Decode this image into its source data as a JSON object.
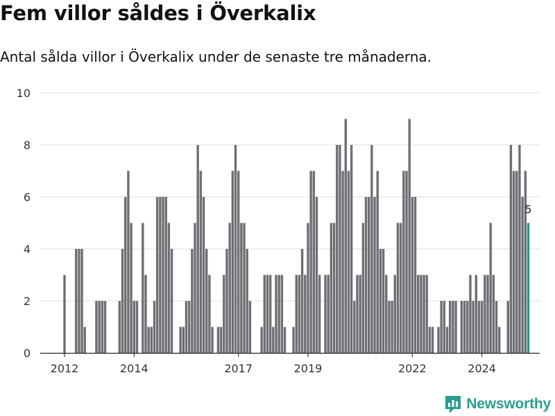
{
  "header": {
    "title": "Fem villor såldes i Överkalix",
    "subtitle": "Antal sålda villor i Överkalix under de senaste tre månaderna."
  },
  "brand": {
    "name": "Newsworthy",
    "color": "#2a9d8f"
  },
  "colors": {
    "bar": "#6f6e74",
    "highlight": "#1a9a91",
    "grid": "#dcdcdc",
    "axis": "#333333"
  },
  "chart_data": {
    "type": "bar",
    "title": "Fem villor såldes i Överkalix",
    "subtitle": "Antal sålda villor i Överkalix under de senaste tre månaderna.",
    "xlabel": "",
    "ylabel": "",
    "ylim": [
      0,
      10
    ],
    "y_ticks": [
      0,
      2,
      4,
      6,
      8,
      10
    ],
    "x_tick_labels": [
      "2012",
      "2014",
      "2017",
      "2019",
      "2022",
      "2024"
    ],
    "x_tick_months": [
      0,
      24,
      60,
      84,
      120,
      144
    ],
    "grid": true,
    "legend": "none",
    "series": [
      {
        "values": [
          3,
          0,
          0,
          0,
          4,
          4,
          4,
          1,
          0,
          0,
          0,
          2,
          2,
          2,
          2,
          0,
          0,
          0,
          0,
          2,
          4,
          6,
          7,
          5,
          2,
          2,
          0,
          5,
          3,
          1,
          1,
          2,
          6,
          6,
          6,
          6,
          5,
          4,
          0,
          0,
          1,
          1,
          2,
          2,
          4,
          5,
          8,
          7,
          6,
          4,
          3,
          1,
          0,
          1,
          1,
          3,
          4,
          5,
          7,
          8,
          7,
          5,
          5,
          4,
          2,
          0,
          0,
          0,
          1,
          3,
          3,
          3,
          1,
          3,
          3,
          3,
          1,
          0,
          0,
          1,
          3,
          3,
          4,
          3,
          5,
          7,
          7,
          6,
          3,
          0,
          3,
          3,
          5,
          5,
          8,
          8,
          7,
          9,
          7,
          8,
          2,
          3,
          3,
          5,
          6,
          6,
          8,
          6,
          7,
          4,
          4,
          3,
          2,
          2,
          3,
          5,
          5,
          7,
          7,
          9,
          6,
          6,
          3,
          3,
          3,
          3,
          1,
          1,
          0,
          1,
          2,
          2,
          1,
          2,
          2,
          2,
          0,
          2,
          2,
          2,
          3,
          2,
          3,
          2,
          2,
          3,
          3,
          5,
          3,
          2,
          1,
          0,
          0,
          2,
          8,
          7,
          7,
          8,
          6,
          7,
          5
        ],
        "highlight_last": true
      }
    ],
    "annotations": [
      {
        "label": "5"
      }
    ]
  }
}
